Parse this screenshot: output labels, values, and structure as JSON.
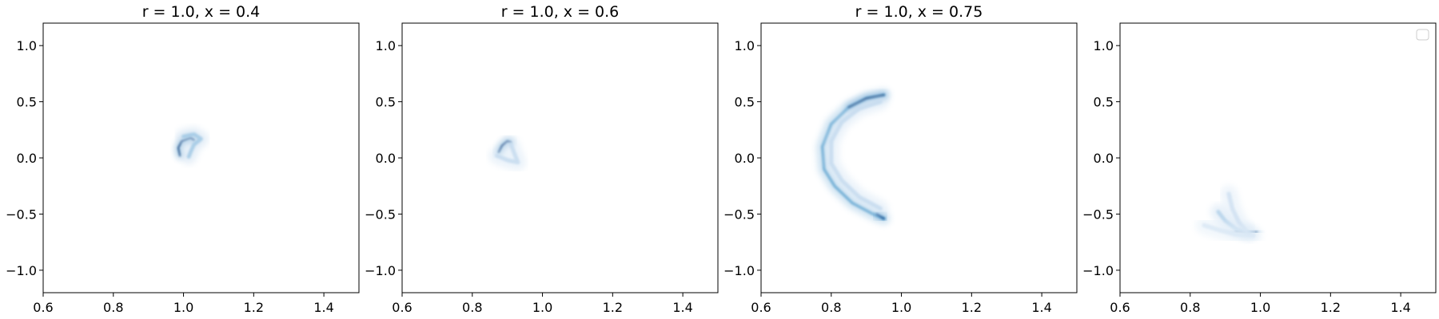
{
  "chart_data": [
    {
      "type": "heatmap",
      "title": "r = 1.0, x = 0.4",
      "colormap": "Blues",
      "xlim": [
        0.6,
        1.5
      ],
      "ylim": [
        -1.2,
        1.2
      ],
      "xticks": [
        "0.6",
        "0.8",
        "1.0",
        "1.2",
        "1.4"
      ],
      "yticks": [
        "1.0",
        "0.5",
        "0.0",
        "−0.5",
        "−1.0"
      ],
      "xtick_values": [
        0.6,
        0.8,
        1.0,
        1.2,
        1.4
      ],
      "ytick_values": [
        1.0,
        0.5,
        0.0,
        -0.5,
        -1.0
      ],
      "grid": false,
      "density_ridges": [
        {
          "points": [
            [
              0.99,
              0.02
            ],
            [
              0.985,
              0.09
            ],
            [
              0.995,
              0.15
            ],
            [
              1.02,
              0.18
            ],
            [
              1.03,
              0.16
            ]
          ],
          "intensity": 0.95
        },
        {
          "points": [
            [
              1.0,
              0.19
            ],
            [
              1.03,
              0.21
            ],
            [
              1.05,
              0.17
            ],
            [
              1.03,
              0.12
            ],
            [
              1.02,
              0.05
            ],
            [
              1.015,
              0.01
            ]
          ],
          "intensity": 0.35
        }
      ]
    },
    {
      "type": "heatmap",
      "title": "r = 1.0, x = 0.6",
      "colormap": "Blues",
      "xlim": [
        0.6,
        1.5
      ],
      "ylim": [
        -1.2,
        1.2
      ],
      "xticks": [
        "0.6",
        "0.8",
        "1.0",
        "1.2",
        "1.4"
      ],
      "yticks": [
        "1.0",
        "0.5",
        "0.0",
        "−0.5",
        "−1.0"
      ],
      "xtick_values": [
        0.6,
        0.8,
        1.0,
        1.2,
        1.4
      ],
      "ytick_values": [
        1.0,
        0.5,
        0.0,
        -0.5,
        -1.0
      ],
      "grid": false,
      "density_ridges": [
        {
          "points": [
            [
              0.875,
              0.05
            ],
            [
              0.885,
              0.11
            ],
            [
              0.9,
              0.15
            ],
            [
              0.91,
              0.14
            ]
          ],
          "intensity": 0.95
        },
        {
          "points": [
            [
              0.87,
              0.02
            ],
            [
              0.9,
              -0.02
            ],
            [
              0.93,
              -0.04
            ],
            [
              0.92,
              0.04
            ],
            [
              0.91,
              0.12
            ]
          ],
          "intensity": 0.25
        }
      ]
    },
    {
      "type": "heatmap",
      "title": "r = 1.0, x = 0.75",
      "colormap": "Blues",
      "xlim": [
        0.6,
        1.5
      ],
      "ylim": [
        -1.2,
        1.2
      ],
      "xticks": [
        "0.6",
        "0.8",
        "1.0",
        "1.2",
        "1.4"
      ],
      "yticks": [
        "1.0",
        "0.5",
        "0.0",
        "−0.5",
        "−1.0"
      ],
      "xtick_values": [
        0.6,
        0.8,
        1.0,
        1.2,
        1.4
      ],
      "ytick_values": [
        1.0,
        0.5,
        0.0,
        -0.5,
        -1.0
      ],
      "grid": false,
      "density_ridges": [
        {
          "points": [
            [
              0.95,
              0.56
            ],
            [
              0.9,
              0.53
            ],
            [
              0.85,
              0.45
            ],
            [
              0.8,
              0.3
            ],
            [
              0.775,
              0.1
            ],
            [
              0.78,
              -0.1
            ],
            [
              0.81,
              -0.25
            ],
            [
              0.86,
              -0.4
            ],
            [
              0.92,
              -0.5
            ],
            [
              0.95,
              -0.54
            ]
          ],
          "intensity": 0.55
        },
        {
          "points": [
            [
              0.85,
              0.45
            ],
            [
              0.9,
              0.53
            ],
            [
              0.95,
              0.56
            ]
          ],
          "intensity": 1.0
        },
        {
          "points": [
            [
              0.93,
              -0.5
            ],
            [
              0.95,
              -0.54
            ]
          ],
          "intensity": 0.9
        },
        {
          "points": [
            [
              0.94,
              0.5
            ],
            [
              0.88,
              0.44
            ],
            [
              0.83,
              0.32
            ],
            [
              0.8,
              0.15
            ],
            [
              0.8,
              -0.05
            ],
            [
              0.83,
              -0.2
            ],
            [
              0.88,
              -0.35
            ],
            [
              0.94,
              -0.45
            ]
          ],
          "intensity": 0.25
        }
      ]
    },
    {
      "type": "heatmap",
      "title": "",
      "colormap": "Blues",
      "xlim": [
        0.6,
        1.5
      ],
      "ylim": [
        -1.2,
        1.2
      ],
      "xticks": [
        "0.6",
        "0.8",
        "1.0",
        "1.2",
        "1.4"
      ],
      "yticks": [
        "1.0",
        "0.5",
        "0.0",
        "−0.5",
        "−1.0"
      ],
      "xtick_values": [
        0.6,
        0.8,
        1.0,
        1.2,
        1.4
      ],
      "ytick_values": [
        1.0,
        0.5,
        0.0,
        -0.5,
        -1.0
      ],
      "grid": false,
      "legend": "top-right",
      "density_ridges": [
        {
          "points": [
            [
              0.93,
              -0.65
            ],
            [
              0.96,
              -0.66
            ],
            [
              0.99,
              -0.66
            ]
          ],
          "intensity": 1.0
        },
        {
          "points": [
            [
              0.88,
              -0.48
            ],
            [
              0.9,
              -0.56
            ],
            [
              0.93,
              -0.63
            ],
            [
              0.97,
              -0.67
            ]
          ],
          "intensity": 0.3
        },
        {
          "points": [
            [
              0.91,
              -0.32
            ],
            [
              0.92,
              -0.45
            ],
            [
              0.94,
              -0.58
            ],
            [
              0.96,
              -0.65
            ]
          ],
          "intensity": 0.2
        },
        {
          "points": [
            [
              0.84,
              -0.6
            ],
            [
              0.88,
              -0.64
            ],
            [
              0.93,
              -0.68
            ],
            [
              0.98,
              -0.69
            ]
          ],
          "intensity": 0.15
        }
      ]
    }
  ]
}
